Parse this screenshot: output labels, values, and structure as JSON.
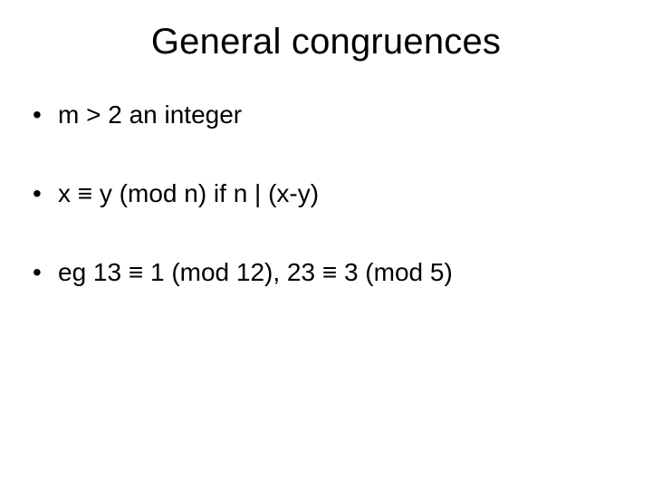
{
  "slide": {
    "title": "General congruences",
    "title_fontsize": 40,
    "body_fontsize": 28,
    "background_color": "#ffffff",
    "text_color": "#000000",
    "bullets": [
      "m > 2 an integer",
      "x ≡ y (mod n) if  n | (x-y)",
      "eg 13 ≡ 1 (mod 12), 23 ≡ 3 (mod 5)"
    ]
  }
}
